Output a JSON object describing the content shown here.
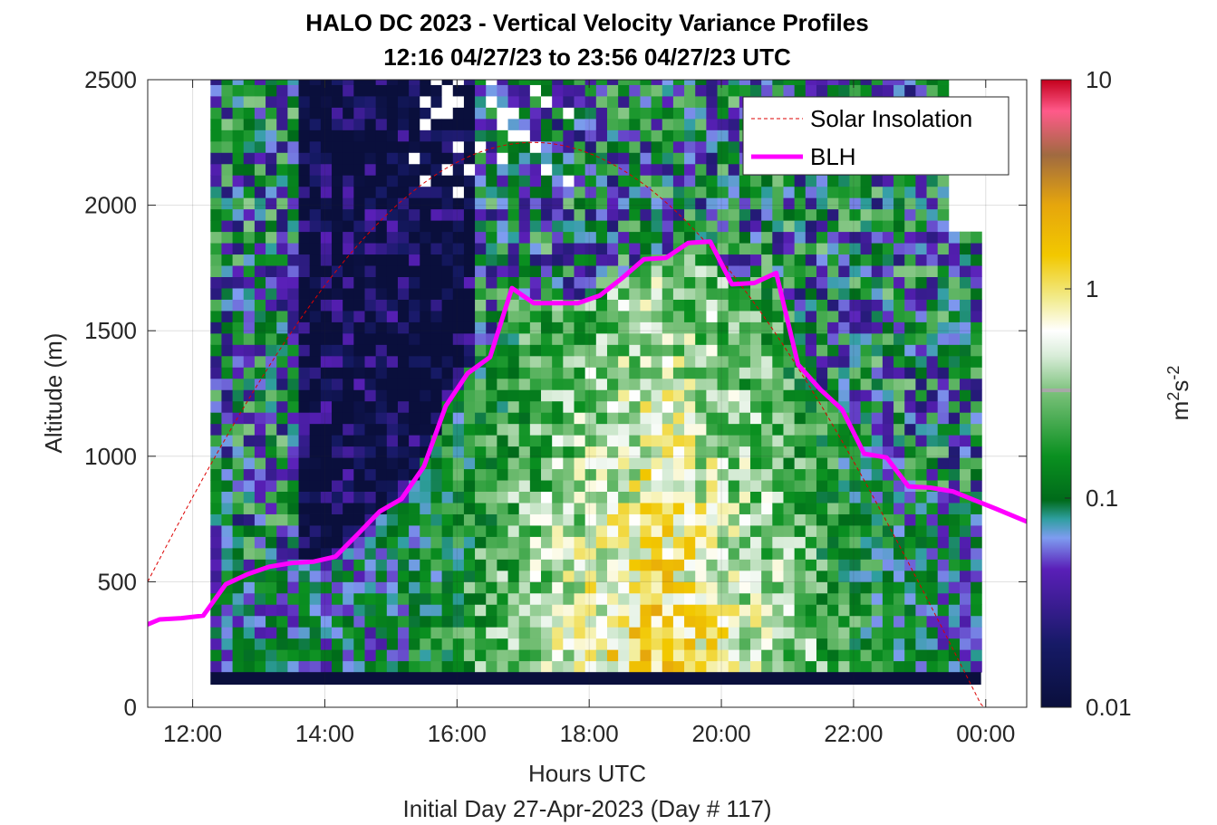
{
  "chart_data": {
    "type": "heatmap",
    "title": "HALO DC 2023 - Vertical Velocity Variance Profiles",
    "subtitle": "12:16 04/27/23 to 23:56 04/27/23  UTC",
    "xlabel": "Hours UTC",
    "xlabel2": "Initial Day 27-Apr-2023 (Day # 117)",
    "ylabel": "Altitude (m)",
    "x_ticks": [
      "12:00",
      "14:00",
      "16:00",
      "18:00",
      "20:00",
      "22:00",
      "00:00"
    ],
    "x_tick_hours": [
      12,
      14,
      16,
      18,
      20,
      22,
      24
    ],
    "y_ticks": [
      "0",
      "500",
      "1000",
      "1500",
      "2000",
      "2500"
    ],
    "y_tick_values": [
      0,
      500,
      1000,
      1500,
      2000,
      2500
    ],
    "xlim_hours": [
      11.32,
      24.62
    ],
    "ylim": [
      0,
      2500
    ],
    "grid": true,
    "colorbar": {
      "label_base": "m",
      "label_sup1": "2",
      "label_mid": "s",
      "label_sup2": "-2",
      "scale": "log",
      "range": [
        0.01,
        10
      ],
      "tick_labels": [
        "10",
        "1",
        "0.1",
        "0.01"
      ],
      "tick_values": [
        10,
        1,
        0.1,
        0.01
      ]
    },
    "legend": {
      "position": "top-right",
      "entries": [
        "Solar Insolation",
        "BLH"
      ]
    },
    "series": [
      {
        "name": "BLH",
        "color": "#ff00ff",
        "x_hours": [
          11.32,
          11.5,
          11.83,
          12.16,
          12.5,
          12.83,
          13.16,
          13.5,
          13.83,
          14.16,
          14.5,
          14.83,
          15.16,
          15.5,
          15.83,
          16.16,
          16.5,
          16.83,
          17.16,
          17.5,
          17.83,
          18.16,
          18.5,
          18.83,
          19.16,
          19.5,
          19.83,
          20.16,
          20.5,
          20.83,
          21.16,
          21.5,
          21.83,
          22.16,
          22.5,
          22.83,
          23.16,
          23.5,
          23.83,
          24.16,
          24.62
        ],
        "values": [
          330,
          350,
          355,
          365,
          490,
          530,
          560,
          575,
          580,
          600,
          690,
          780,
          830,
          960,
          1200,
          1330,
          1395,
          1670,
          1610,
          1610,
          1610,
          1640,
          1710,
          1785,
          1790,
          1850,
          1855,
          1685,
          1690,
          1730,
          1365,
          1265,
          1185,
          1010,
          995,
          880,
          875,
          860,
          825,
          790,
          740
        ]
      },
      {
        "name": "Solar Insolation",
        "color": "#dd0000",
        "noon_hours": 17.15,
        "half_width_hours": 6.8,
        "peak_m": 2250
      }
    ],
    "heatmap": {
      "x_start_hours": 12.27,
      "x_end_hours": 23.93,
      "bin_hours": 0.1667,
      "gate_start_m": 90,
      "gate_size_m": 30,
      "max_alt_m": 2500,
      "missing_color": "#ffffff"
    }
  }
}
